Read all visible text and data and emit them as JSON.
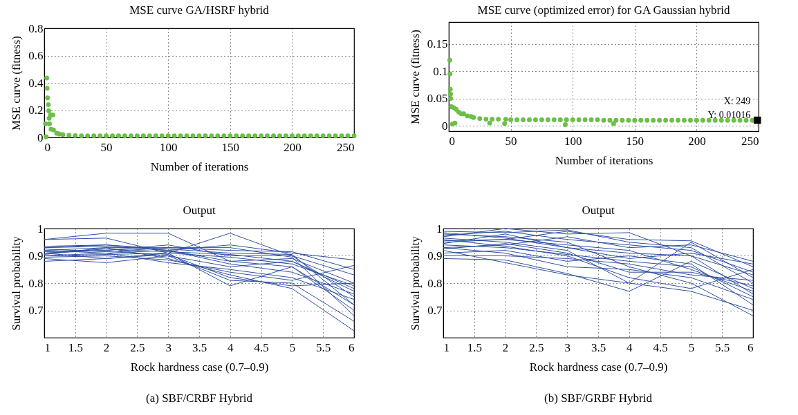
{
  "chart_data": [
    {
      "type": "scatter",
      "title": "MSE curve GA/HSRF hybrid",
      "xlabel": "Number of iterations",
      "ylabel": "MSE curve (fitness)",
      "xlim": [
        0,
        250
      ],
      "xticks": [
        0,
        50,
        100,
        150,
        200,
        250
      ],
      "ylim": [
        0,
        0.8
      ],
      "yticks": [
        0,
        0.2,
        0.4,
        0.6,
        0.8
      ],
      "grid": true,
      "marker": "circle",
      "x": [
        1,
        1.5,
        2,
        2.3,
        2.6,
        3.3,
        3.6,
        3.9,
        4.2,
        5,
        5.5,
        6,
        7,
        7.5,
        10,
        12,
        15,
        20,
        25,
        30,
        35,
        40,
        45,
        50,
        55,
        60,
        65,
        70,
        75,
        80,
        85,
        90,
        95,
        100,
        105,
        110,
        115,
        120,
        125,
        130,
        135,
        140,
        145,
        150,
        155,
        160,
        165,
        170,
        175,
        180,
        185,
        190,
        195,
        200,
        205,
        210,
        215,
        220,
        225,
        230,
        235,
        240,
        245,
        250
      ],
      "series": [
        {
          "color": "#6cbf47",
          "values": [
            0.1,
            0.005,
            0.435,
            0.36,
            0.29,
            0.24,
            0.195,
            0.14,
            0.1,
            0.165,
            0.06,
            0.165,
            0.165,
            0.055,
            0.03,
            0.025,
            0.02,
            0.015,
            0.013,
            0.012,
            0.012,
            0.012,
            0.012,
            0.011,
            0.011,
            0.011,
            0.011,
            0.011,
            0.011,
            0.011,
            0.011,
            0.011,
            0.011,
            0.011,
            0.011,
            0.011,
            0.011,
            0.011,
            0.011,
            0.011,
            0.011,
            0.011,
            0.011,
            0.011,
            0.011,
            0.011,
            0.011,
            0.011,
            0.011,
            0.011,
            0.011,
            0.011,
            0.011,
            0.011,
            0.011,
            0.011,
            0.011,
            0.011,
            0.011,
            0.011,
            0.011,
            0.011,
            0.011,
            0.011
          ]
        }
      ]
    },
    {
      "type": "scatter",
      "title": "MSE curve (optimized error) for GA Gaussian hybrid",
      "xlabel": "Number of iterations",
      "ylabel": "MSE curve (fitness)",
      "xlim": [
        0,
        250
      ],
      "xticks": [
        0,
        50,
        100,
        150,
        200,
        250
      ],
      "ylim": [
        -0.01,
        0.19
      ],
      "yticks": [
        0,
        0.05,
        0.1,
        0.15
      ],
      "grid": true,
      "marker": "circle",
      "annotations": [
        {
          "text": "X: 249\nY: 0.01016",
          "x": 249,
          "y": 0.01016
        }
      ],
      "x": [
        0.8,
        1,
        1.2,
        1.4,
        1.6,
        2,
        3,
        4,
        5,
        6,
        8,
        10,
        12,
        15,
        18,
        20,
        25,
        30,
        33,
        35,
        40,
        45,
        46,
        50,
        55,
        60,
        65,
        70,
        75,
        80,
        85,
        90,
        94,
        95,
        100,
        105,
        110,
        115,
        120,
        125,
        130,
        133,
        135,
        140,
        145,
        150,
        155,
        160,
        165,
        170,
        175,
        180,
        185,
        190,
        195,
        200,
        205,
        210,
        215,
        220,
        225,
        230,
        235,
        240,
        245
      ],
      "series": [
        {
          "color": "#6cbf47",
          "values": [
            0.12,
            0.095,
            0.067,
            0.058,
            0.05,
            0.035,
            0.003,
            0.033,
            0.005,
            0.03,
            0.025,
            0.022,
            0.022,
            0.018,
            0.017,
            0.015,
            0.013,
            0.012,
            0.005,
            0.012,
            0.012,
            0.004,
            0.012,
            0.011,
            0.011,
            0.011,
            0.011,
            0.011,
            0.011,
            0.011,
            0.011,
            0.011,
            0.002,
            0.011,
            0.011,
            0.011,
            0.011,
            0.011,
            0.011,
            0.01,
            0.01,
            0.004,
            0.01,
            0.01,
            0.01,
            0.01,
            0.01,
            0.01,
            0.01,
            0.01,
            0.01,
            0.01,
            0.01,
            0.01,
            0.01,
            0.01,
            0.01,
            0.01,
            0.01,
            0.01,
            0.01,
            0.01,
            0.01,
            0.01,
            0.01
          ]
        }
      ]
    },
    {
      "type": "line",
      "title": "Output",
      "xlabel": "Rock hardness case (0.7–0.9)",
      "ylabel": "Survival probability",
      "xlim": [
        1,
        6
      ],
      "xticks": [
        1,
        1.5,
        2,
        2.5,
        3,
        3.5,
        4,
        4.5,
        5,
        5.5,
        6
      ],
      "ylim": [
        0.6,
        1
      ],
      "yticks": [
        0.7,
        0.8,
        0.9,
        1
      ],
      "grid": true,
      "annotations": [
        "(a)  SBF/CRBF Hybrid"
      ],
      "x": [
        1,
        2,
        3,
        4,
        5,
        6
      ],
      "series": [
        {
          "color": "#2e4fa1",
          "values": [
            0.96,
            0.983,
            0.983,
            0.88,
            0.86,
            0.72
          ]
        },
        {
          "color": "#2e4fa1",
          "values": [
            0.96,
            0.965,
            0.91,
            0.983,
            0.9,
            0.75
          ]
        },
        {
          "color": "#2e4fa1",
          "values": [
            0.93,
            0.94,
            0.92,
            0.94,
            0.91,
            0.885
          ]
        },
        {
          "color": "#2e4fa1",
          "values": [
            0.92,
            0.93,
            0.93,
            0.92,
            0.915,
            0.85
          ]
        },
        {
          "color": "#2e4fa1",
          "values": [
            0.91,
            0.92,
            0.94,
            0.9,
            0.9,
            0.83
          ]
        },
        {
          "color": "#2e4fa1",
          "values": [
            0.9,
            0.91,
            0.92,
            0.88,
            0.89,
            0.8
          ]
        },
        {
          "color": "#2e4fa1",
          "values": [
            0.89,
            0.875,
            0.9,
            0.86,
            0.88,
            0.78
          ]
        },
        {
          "color": "#2e4fa1",
          "values": [
            0.88,
            0.89,
            0.91,
            0.79,
            0.86,
            0.7
          ]
        },
        {
          "color": "#2e4fa1",
          "values": [
            0.915,
            0.92,
            0.9,
            0.81,
            0.8,
            0.66
          ]
        },
        {
          "color": "#2e4fa1",
          "values": [
            0.905,
            0.93,
            0.89,
            0.83,
            0.78,
            0.625
          ]
        },
        {
          "color": "#2e4fa1",
          "values": [
            0.92,
            0.91,
            0.875,
            0.85,
            0.82,
            0.74
          ]
        },
        {
          "color": "#2e4fa1",
          "values": [
            0.93,
            0.935,
            0.92,
            0.87,
            0.84,
            0.76
          ]
        },
        {
          "color": "#2e4fa1",
          "values": [
            0.9,
            0.905,
            0.91,
            0.895,
            0.87,
            0.79
          ]
        },
        {
          "color": "#2e4fa1",
          "values": [
            0.91,
            0.925,
            0.915,
            0.905,
            0.88,
            0.77
          ]
        },
        {
          "color": "#2e4fa1",
          "values": [
            0.925,
            0.915,
            0.93,
            0.93,
            0.895,
            0.68
          ]
        },
        {
          "color": "#2e4fa1",
          "values": [
            0.895,
            0.9,
            0.885,
            0.84,
            0.81,
            0.865
          ]
        },
        {
          "color": "#2e4fa1",
          "values": [
            0.935,
            0.94,
            0.925,
            0.91,
            0.905,
            0.72
          ]
        },
        {
          "color": "#2e4fa1",
          "values": [
            0.91,
            0.89,
            0.905,
            0.82,
            0.79,
            0.8
          ]
        }
      ]
    },
    {
      "type": "line",
      "title": "Output",
      "xlabel": "Rock hardness case (0.7–0.9)",
      "ylabel": "Survival probability",
      "xlim": [
        1,
        6
      ],
      "xticks": [
        1,
        1.5,
        2,
        2.5,
        3,
        3.5,
        4,
        4.5,
        5,
        5.5,
        6
      ],
      "ylim": [
        0.6,
        1
      ],
      "yticks": [
        0.7,
        0.8,
        0.9,
        1
      ],
      "grid": true,
      "annotations": [
        "(b)  SBF/GRBF Hybrid"
      ],
      "x": [
        1,
        2,
        3,
        4,
        5,
        6
      ],
      "series": [
        {
          "color": "#2e4fa1",
          "values": [
            0.99,
            0.985,
            0.995,
            0.95,
            0.93,
            0.8
          ]
        },
        {
          "color": "#2e4fa1",
          "values": [
            0.97,
            1.0,
            0.98,
            0.985,
            0.9,
            0.83
          ]
        },
        {
          "color": "#2e4fa1",
          "values": [
            0.95,
            0.96,
            0.99,
            0.96,
            0.955,
            0.86
          ]
        },
        {
          "color": "#2e4fa1",
          "values": [
            0.93,
            0.94,
            0.97,
            0.93,
            0.94,
            0.88
          ]
        },
        {
          "color": "#2e4fa1",
          "values": [
            0.92,
            0.875,
            0.83,
            0.8,
            0.95,
            0.82
          ]
        },
        {
          "color": "#2e4fa1",
          "values": [
            0.89,
            0.885,
            0.835,
            0.77,
            0.88,
            0.78
          ]
        },
        {
          "color": "#2e4fa1",
          "values": [
            0.965,
            0.95,
            0.92,
            0.8,
            0.77,
            0.7
          ]
        },
        {
          "color": "#2e4fa1",
          "values": [
            0.98,
            0.97,
            0.95,
            0.86,
            0.8,
            0.68
          ]
        },
        {
          "color": "#2e4fa1",
          "values": [
            0.94,
            0.93,
            0.905,
            0.88,
            0.86,
            0.75
          ]
        },
        {
          "color": "#2e4fa1",
          "values": [
            0.91,
            0.92,
            0.88,
            0.9,
            0.87,
            0.72
          ]
        },
        {
          "color": "#2e4fa1",
          "values": [
            0.955,
            0.96,
            0.94,
            0.92,
            0.85,
            0.77
          ]
        },
        {
          "color": "#2e4fa1",
          "values": [
            0.925,
            0.945,
            0.91,
            0.84,
            0.84,
            0.79
          ]
        },
        {
          "color": "#2e4fa1",
          "values": [
            0.975,
            0.99,
            0.96,
            0.94,
            0.92,
            0.84
          ]
        },
        {
          "color": "#2e4fa1",
          "values": [
            0.9,
            0.9,
            0.89,
            0.87,
            0.83,
            0.81
          ]
        },
        {
          "color": "#2e4fa1",
          "values": [
            0.945,
            0.98,
            0.93,
            0.91,
            0.9,
            0.76
          ]
        },
        {
          "color": "#2e4fa1",
          "values": [
            0.96,
            0.935,
            0.9,
            0.82,
            0.78,
            0.85
          ]
        },
        {
          "color": "#2e4fa1",
          "values": [
            0.985,
            0.965,
            0.93,
            0.89,
            0.91,
            0.87
          ]
        },
        {
          "color": "#2e4fa1",
          "values": [
            0.93,
            0.91,
            0.86,
            0.85,
            0.82,
            0.74
          ]
        }
      ]
    }
  ]
}
